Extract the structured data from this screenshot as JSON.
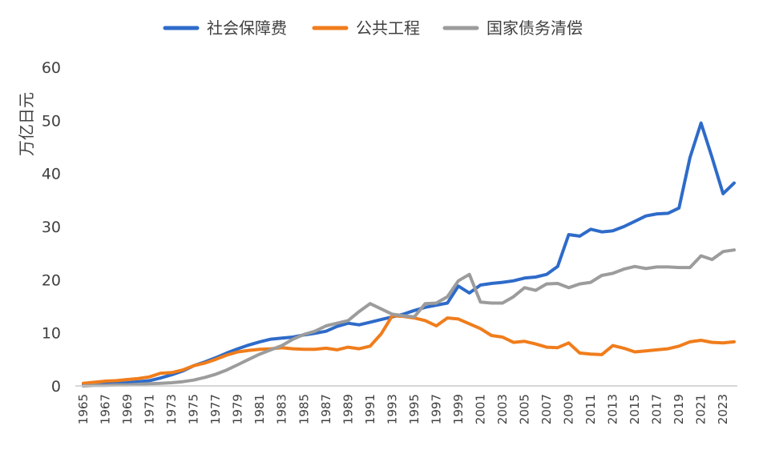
{
  "chart_data": {
    "type": "line",
    "title": "",
    "xlabel": "",
    "ylabel": "万亿日元",
    "ylim": [
      0,
      60
    ],
    "xlim": [
      1965,
      2024
    ],
    "grid": false,
    "legend_position": "top",
    "yticks": [
      0,
      10,
      20,
      30,
      40,
      50,
      60
    ],
    "xticks": [
      "1965",
      "1967",
      "1969",
      "1971",
      "1973",
      "1975",
      "1977",
      "1979",
      "1981",
      "1983",
      "1985",
      "1987",
      "1989",
      "1991",
      "1993",
      "1995",
      "1997",
      "1999",
      "2001",
      "2003",
      "2005",
      "2007",
      "2009",
      "2011",
      "2013",
      "2015",
      "2017",
      "2019",
      "2021",
      "2023"
    ],
    "x": [
      1965,
      1966,
      1967,
      1968,
      1969,
      1970,
      1971,
      1972,
      1973,
      1974,
      1975,
      1976,
      1977,
      1978,
      1979,
      1980,
      1981,
      1982,
      1983,
      1984,
      1985,
      1986,
      1987,
      1988,
      1989,
      1990,
      1991,
      1992,
      1993,
      1994,
      1995,
      1996,
      1997,
      1998,
      1999,
      2000,
      2001,
      2002,
      2003,
      2004,
      2005,
      2006,
      2007,
      2008,
      2009,
      2010,
      2011,
      2012,
      2013,
      2014,
      2015,
      2016,
      2017,
      2018,
      2019,
      2020,
      2021,
      2022,
      2023,
      2024
    ],
    "series": [
      {
        "name": "社会保障费",
        "color": "#2e6bc9",
        "values": [
          0.3,
          0.4,
          0.5,
          0.5,
          0.6,
          0.8,
          1.0,
          1.5,
          2.1,
          2.8,
          3.8,
          4.5,
          5.3,
          6.2,
          7.0,
          7.7,
          8.3,
          8.8,
          9.0,
          9.2,
          9.6,
          9.9,
          10.3,
          11.2,
          11.8,
          11.5,
          12.0,
          12.5,
          13.0,
          13.5,
          14.2,
          14.8,
          15.2,
          15.6,
          18.8,
          17.5,
          19.0,
          19.3,
          19.5,
          19.8,
          20.3,
          20.5,
          21.0,
          22.5,
          28.5,
          28.2,
          29.5,
          29.0,
          29.2,
          30.0,
          31.0,
          32.0,
          32.4,
          32.5,
          33.5,
          43.0,
          49.5,
          43.0,
          36.2,
          38.2
        ]
      },
      {
        "name": "公共工程",
        "color": "#f07d1c",
        "values": [
          0.5,
          0.7,
          0.9,
          1.0,
          1.2,
          1.4,
          1.7,
          2.4,
          2.5,
          3.0,
          3.8,
          4.3,
          5.0,
          5.8,
          6.4,
          6.7,
          6.9,
          7.0,
          7.2,
          7.0,
          6.9,
          6.9,
          7.1,
          6.8,
          7.3,
          7.0,
          7.5,
          9.8,
          13.2,
          13.1,
          12.8,
          12.3,
          11.3,
          12.8,
          12.6,
          11.7,
          10.8,
          9.5,
          9.2,
          8.2,
          8.4,
          7.9,
          7.3,
          7.2,
          8.1,
          6.2,
          6.0,
          5.9,
          7.6,
          7.1,
          6.4,
          6.6,
          6.8,
          7.0,
          7.5,
          8.3,
          8.6,
          8.2,
          8.1,
          8.3
        ]
      },
      {
        "name": "国家债务清偿",
        "color": "#9c9c9c",
        "values": [
          0.0,
          0.1,
          0.1,
          0.2,
          0.2,
          0.3,
          0.4,
          0.5,
          0.6,
          0.8,
          1.1,
          1.6,
          2.2,
          3.0,
          4.0,
          5.0,
          6.0,
          6.8,
          7.6,
          8.8,
          9.7,
          10.3,
          11.3,
          11.8,
          12.3,
          14.0,
          15.5,
          14.5,
          13.5,
          13.2,
          13.0,
          15.5,
          15.6,
          16.8,
          19.8,
          21.0,
          15.8,
          15.6,
          15.6,
          16.8,
          18.5,
          18.0,
          19.2,
          19.3,
          18.5,
          19.2,
          19.5,
          20.8,
          21.2,
          22.0,
          22.5,
          22.1,
          22.4,
          22.4,
          22.3,
          22.3,
          24.5,
          23.8,
          25.3,
          25.6
        ]
      }
    ]
  }
}
